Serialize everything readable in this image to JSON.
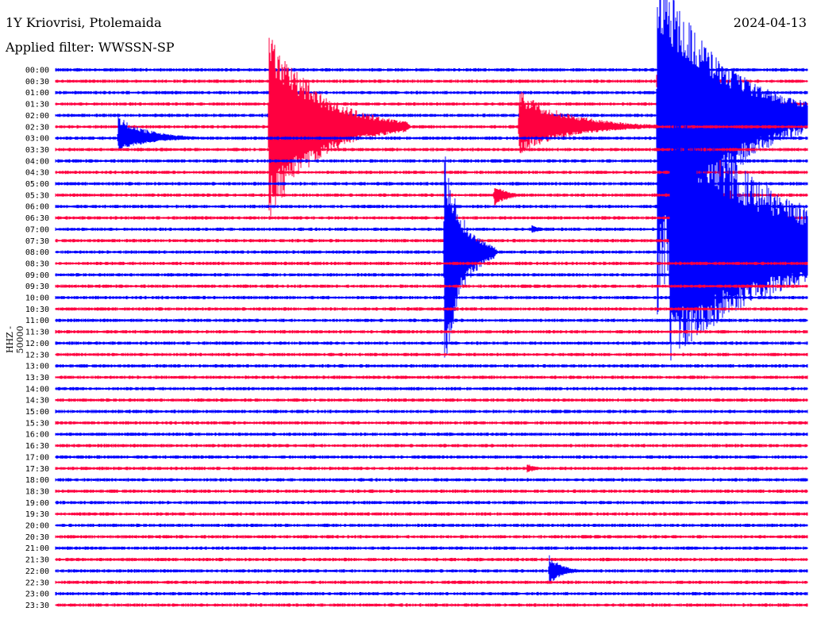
{
  "header": {
    "station": "1Y Kriovrisi, Ptolemaida",
    "filter": "Applied filter: WWSSN-SP",
    "date": "2024-04-13",
    "channel": "HHZ - 50000"
  },
  "colors": {
    "even": "#0000ff",
    "odd": "#ff0040"
  },
  "chart_data": {
    "type": "line",
    "title": "1Y Kriovrisi, Ptolemaida",
    "subtitle": "Applied filter: WWSSN-SP",
    "ylabel": "HHZ - 50000",
    "row_minutes": 30,
    "tick_labels": [
      "00:00",
      "00:30",
      "01:00",
      "01:30",
      "02:00",
      "02:30",
      "03:00",
      "03:30",
      "04:00",
      "04:30",
      "05:00",
      "05:30",
      "06:00",
      "06:30",
      "07:00",
      "07:30",
      "08:00",
      "08:30",
      "09:00",
      "09:30",
      "10:00",
      "10:30",
      "11:00",
      "11:30",
      "12:00",
      "12:30",
      "13:00",
      "13:30",
      "14:00",
      "14:30",
      "15:00",
      "15:30",
      "16:00",
      "16:30",
      "17:00",
      "17:30",
      "18:00",
      "18:30",
      "19:00",
      "19:30",
      "20:00",
      "20:30",
      "21:00",
      "21:30",
      "22:00",
      "22:30",
      "23:00",
      "23:30"
    ],
    "series_colors": [
      "#0000ff",
      "#ff0040"
    ],
    "events": [
      {
        "row": 6,
        "minute": 2.5,
        "amp_up": 28,
        "amp_down": 17,
        "dur": 3.5
      },
      {
        "row": 5,
        "minute": 8.5,
        "amp_up": 130,
        "amp_down": 118,
        "dur": 5.5
      },
      {
        "row": 5,
        "minute": 18.5,
        "amp_up": 47,
        "amp_down": 35,
        "dur": 5.5
      },
      {
        "row": 16,
        "minute": 15.5,
        "amp_up": 130,
        "amp_down": 155,
        "dur": 2.0
      },
      {
        "row": 11,
        "minute": 17.5,
        "amp_up": 13,
        "amp_down": 15,
        "dur": 1.5
      },
      {
        "row": 1,
        "minute": 24.0,
        "amp_up": 28,
        "amp_down": 32,
        "dur": 2.0
      },
      {
        "row": 4,
        "minute": 24.0,
        "amp_up": 200,
        "amp_down": 255,
        "dur": 7.0
      },
      {
        "row": 16,
        "minute": 24.5,
        "amp_up": 205,
        "amp_down": 140,
        "dur": 12.5
      },
      {
        "row": 13,
        "minute": 26.5,
        "amp_up": 78,
        "amp_down": 55,
        "dur": 1.5
      },
      {
        "row": 14,
        "minute": 19.0,
        "amp_up": 6,
        "amp_down": 6,
        "dur": 1.0
      },
      {
        "row": 35,
        "minute": 18.8,
        "amp_up": 7,
        "amp_down": 7,
        "dur": 1.0
      },
      {
        "row": 44,
        "minute": 19.7,
        "amp_up": 20,
        "amp_down": 17,
        "dur": 1.5
      }
    ]
  }
}
